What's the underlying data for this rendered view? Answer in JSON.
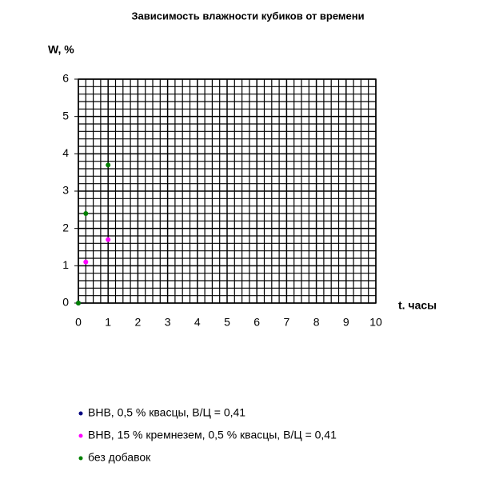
{
  "chart_data": {
    "type": "scatter",
    "title": "Зависимость влажности кубиков от времени",
    "y_label": "W, %",
    "x_label": "t. часы",
    "xlim": [
      0,
      10
    ],
    "xticks": [
      0,
      1,
      2,
      3,
      4,
      5,
      6,
      7,
      8,
      9,
      10
    ],
    "ylim": [
      0,
      6
    ],
    "yticks": [
      0,
      1,
      2,
      3,
      4,
      5,
      6
    ],
    "grid": true,
    "series": [
      {
        "name": "ВНВ,  0,5 % квасцы,  В/Ц = 0,41",
        "color": "#000080",
        "x": [
          0
        ],
        "values": [
          0
        ]
      },
      {
        "name": "ВНВ,  15 % кремнезем,  0,5 % квасцы,  В/Ц = 0,41",
        "color": "#ff00ff",
        "x": [
          0.25,
          1
        ],
        "values": [
          1.1,
          1.7
        ]
      },
      {
        "name": "без добавок",
        "color": "#008000",
        "x": [
          0,
          0.25,
          1
        ],
        "values": [
          0,
          2.4,
          3.7
        ]
      }
    ]
  }
}
